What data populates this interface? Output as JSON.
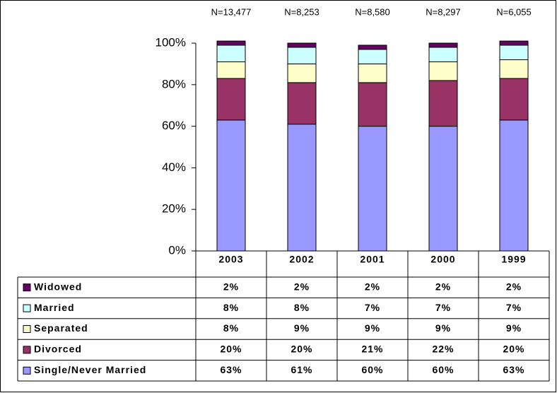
{
  "chart_data": {
    "type": "stacked_bar",
    "categories": [
      "2003",
      "2002",
      "2001",
      "2000",
      "1999"
    ],
    "annotations": [
      "N=13,477",
      "N=8,253",
      "N=8,580",
      "N=8,297",
      "N=6,055"
    ],
    "series": [
      {
        "name": "Single/Never Married",
        "color": "#9999ff",
        "values": [
          63,
          61,
          60,
          60,
          63
        ],
        "value_labels": [
          "63%",
          "61%",
          "60%",
          "60%",
          "63%"
        ]
      },
      {
        "name": "Divorced",
        "color": "#993366",
        "values": [
          20,
          20,
          21,
          22,
          20
        ],
        "value_labels": [
          "20%",
          "20%",
          "21%",
          "22%",
          "20%"
        ]
      },
      {
        "name": "Separated",
        "color": "#ffffcc",
        "values": [
          8,
          9,
          9,
          9,
          9
        ],
        "value_labels": [
          "8%",
          "9%",
          "9%",
          "9%",
          "9%"
        ]
      },
      {
        "name": "Married",
        "color": "#ccffff",
        "values": [
          8,
          8,
          7,
          7,
          7
        ],
        "value_labels": [
          "8%",
          "8%",
          "7%",
          "7%",
          "7%"
        ]
      },
      {
        "name": "Widowed",
        "color": "#660066",
        "values": [
          2,
          2,
          2,
          2,
          2
        ],
        "value_labels": [
          "2%",
          "2%",
          "2%",
          "2%",
          "2%"
        ]
      }
    ],
    "ylim": [
      0,
      100
    ],
    "yticks": [
      {
        "value": 0,
        "label": "0%"
      },
      {
        "value": 20,
        "label": "20%"
      },
      {
        "value": 40,
        "label": "40%"
      },
      {
        "value": 60,
        "label": "60%"
      },
      {
        "value": 80,
        "label": "80%"
      },
      {
        "value": 100,
        "label": "100%"
      }
    ]
  }
}
